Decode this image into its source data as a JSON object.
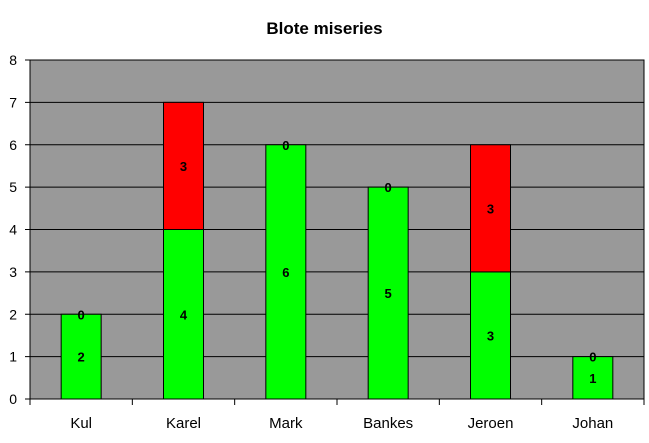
{
  "chart_data": {
    "type": "bar",
    "stacked": true,
    "title": "Blote miseries",
    "xlabel": "",
    "ylabel": "",
    "categories": [
      "Kul",
      "Karel",
      "Mark",
      "Bankes",
      "Jeroen",
      "Johan"
    ],
    "series": [
      {
        "values": [
          2,
          4,
          6,
          5,
          3,
          1
        ],
        "color": "#00ff00"
      },
      {
        "values": [
          0,
          3,
          0,
          0,
          3,
          0
        ],
        "color": "#ff0000"
      }
    ],
    "ylim": [
      0,
      8
    ],
    "yticks": [
      "0",
      "1",
      "2",
      "3",
      "4",
      "5",
      "6",
      "7",
      "8"
    ],
    "grid": true,
    "legend": "none",
    "plot_background": "#999999",
    "data_labels": true
  }
}
